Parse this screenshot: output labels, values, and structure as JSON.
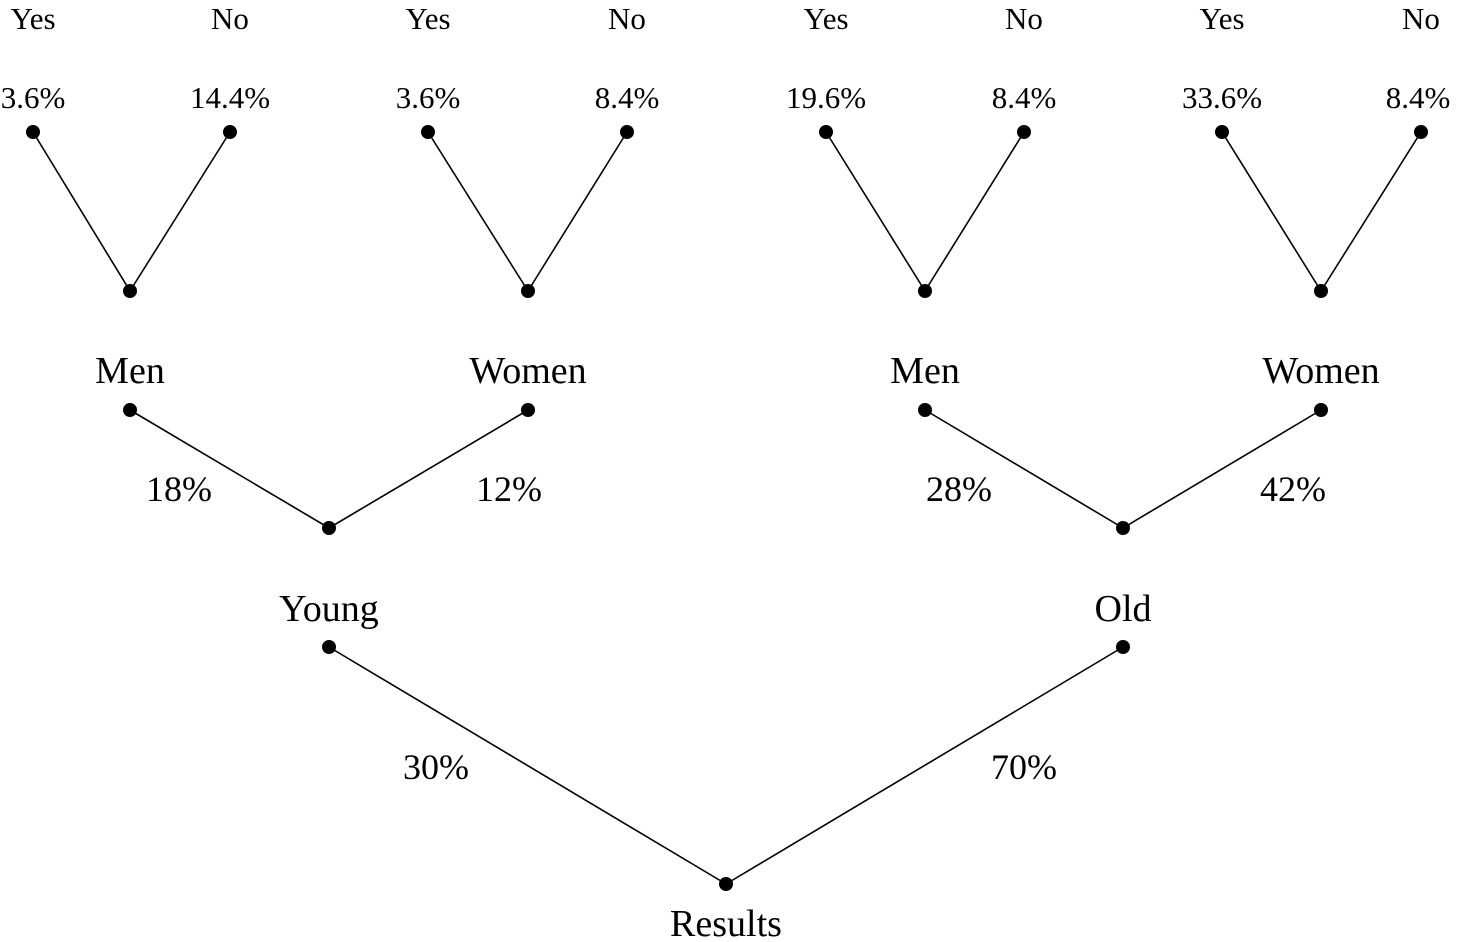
{
  "root": {
    "label": "Results"
  },
  "level1": [
    {
      "id": "young",
      "label": "Young",
      "pct": "30%"
    },
    {
      "id": "old",
      "label": "Old",
      "pct": "70%"
    }
  ],
  "level2": [
    {
      "id": "young-men",
      "label": "Men",
      "pct": "18%"
    },
    {
      "id": "young-women",
      "label": "Women",
      "pct": "12%"
    },
    {
      "id": "old-men",
      "label": "Men",
      "pct": "28%"
    },
    {
      "id": "old-women",
      "label": "Women",
      "pct": "42%"
    }
  ],
  "level3": [
    {
      "id": "young-men-yes",
      "label": "Yes",
      "pct": "3.6%"
    },
    {
      "id": "young-men-no",
      "label": "No",
      "pct": "14.4%"
    },
    {
      "id": "young-women-yes",
      "label": "Yes",
      "pct": "3.6%"
    },
    {
      "id": "young-women-no",
      "label": "No",
      "pct": "8.4%"
    },
    {
      "id": "old-men-yes",
      "label": "Yes",
      "pct": "19.6%"
    },
    {
      "id": "old-men-no",
      "label": "No",
      "pct": "8.4%"
    },
    {
      "id": "old-women-yes",
      "label": "Yes",
      "pct": "33.6%"
    },
    {
      "id": "old-women-no",
      "label": "No",
      "pct": "8.4%"
    }
  ]
}
